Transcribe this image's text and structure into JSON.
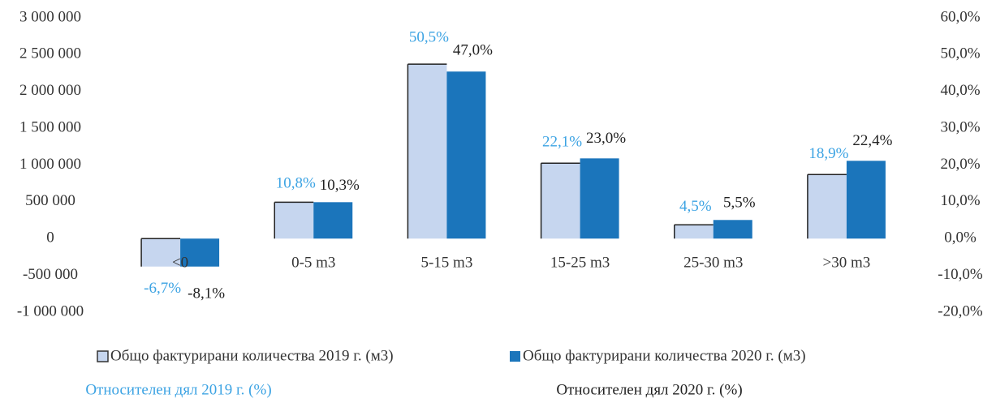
{
  "chart_data": {
    "type": "bar",
    "categories": [
      "<0",
      "0-5 m3",
      "5-15 m3",
      "15-25 m3",
      "25-30 m3",
      ">30 m3"
    ],
    "series": [
      {
        "name": "Общо фактурирани количества 2019 г. (м3)",
        "color": "#c6d6ef",
        "values": [
          -380000,
          495000,
          2370000,
          1025000,
          187000,
          870000
        ]
      },
      {
        "name": "Общо фактурирани количества 2020 г. (м3)",
        "color": "#1b75bb",
        "values": [
          -380000,
          495000,
          2270000,
          1090000,
          253000,
          1057000
        ]
      },
      {
        "name": "Относителен дял 2019 г. (%)",
        "color": "#3ca3e3",
        "axis": "y2",
        "values": [
          -6.7,
          10.8,
          50.5,
          22.1,
          4.5,
          18.9
        ],
        "value_labels": [
          "-6,7%",
          "10,8%",
          "50,5%",
          "22,1%",
          "4,5%",
          "18,9%"
        ]
      },
      {
        "name": "Относителен дял 2020 г. (%)",
        "color": "#222222",
        "axis": "y2",
        "values": [
          -8.1,
          10.3,
          47.0,
          23.0,
          5.5,
          22.4
        ],
        "value_labels": [
          "-8,1%",
          "10,3%",
          "47,0%",
          "23,0%",
          "5,5%",
          "22,4%"
        ]
      }
    ],
    "ylim": [
      -1000000,
      3000000
    ],
    "yticks": [
      {
        "value": -1000000,
        "label": "-1 000 000"
      },
      {
        "value": -500000,
        "label": "-500 000"
      },
      0,
      {
        "value": 500000,
        "label": "500 000"
      },
      {
        "value": 1000000,
        "label": "1 000 000"
      },
      {
        "value": 1500000,
        "label": "1 500 000"
      },
      {
        "value": 2000000,
        "label": "2 000 000"
      },
      {
        "value": 2500000,
        "label": "2 500 000"
      },
      {
        "value": 3000000,
        "label": "3 000 000"
      }
    ],
    "y2lim": [
      -20,
      60
    ],
    "y2ticks": [
      {
        "value": -20,
        "label": "-20,0%"
      },
      {
        "value": -10,
        "label": "-10,0%"
      },
      {
        "value": 0,
        "label": "0,0%"
      },
      {
        "value": 10,
        "label": "10,0%"
      },
      {
        "value": 20,
        "label": "20,0%"
      },
      {
        "value": 30,
        "label": "30,0%"
      },
      {
        "value": 40,
        "label": "40,0%"
      },
      {
        "value": 50,
        "label": "50,0%"
      },
      {
        "value": 60,
        "label": "60,0%"
      }
    ]
  }
}
